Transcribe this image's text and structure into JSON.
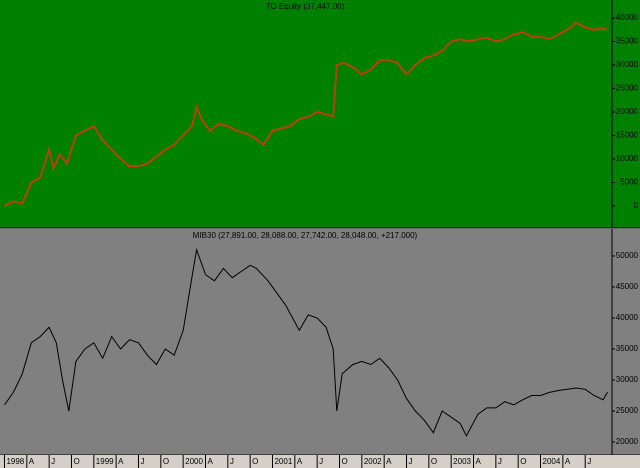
{
  "chart_data": [
    {
      "type": "line",
      "title": "TO Equity (37,447.00)",
      "background": "#008000",
      "label_color": "#000000",
      "series": [
        {
          "name": "TO Equity",
          "color": "#b8400c",
          "x": [
            1998.0,
            1998.1,
            1998.2,
            1998.3,
            1998.4,
            1998.5,
            1998.55,
            1998.62,
            1998.7,
            1998.8,
            1998.9,
            1999.0,
            1999.1,
            1999.2,
            1999.3,
            1999.4,
            1999.5,
            1999.6,
            1999.7,
            1999.8,
            1999.9,
            2000.0,
            2000.1,
            2000.15,
            2000.22,
            2000.3,
            2000.4,
            2000.5,
            2000.6,
            2000.7,
            2000.8,
            2000.9,
            2001.0,
            2001.1,
            2001.2,
            2001.3,
            2001.4,
            2001.5,
            2001.6,
            2001.68,
            2001.72,
            2001.8,
            2001.9,
            2002.0,
            2002.1,
            2002.2,
            2002.3,
            2002.4,
            2002.5,
            2002.6,
            2002.7,
            2002.8,
            2002.9,
            2003.0,
            2003.1,
            2003.2,
            2003.3,
            2003.4,
            2003.5,
            2003.6,
            2003.7,
            2003.8,
            2003.9,
            2004.0,
            2004.1,
            2004.2,
            2004.3,
            2004.4,
            2004.5,
            2004.6,
            2004.7,
            2004.75
          ],
          "values": [
            0,
            1000,
            500,
            5000,
            6000,
            12000,
            8000,
            11000,
            9000,
            15000,
            16000,
            17000,
            14000,
            12000,
            10000,
            8500,
            8500,
            9000,
            10500,
            12000,
            13000,
            15000,
            17000,
            21000,
            18000,
            16000,
            17500,
            17000,
            16000,
            15500,
            14500,
            13000,
            16000,
            16500,
            17000,
            18500,
            19000,
            20000,
            19500,
            19000,
            30000,
            30500,
            29500,
            28000,
            29000,
            31000,
            31000,
            30500,
            28000,
            30000,
            31500,
            32000,
            33000,
            35000,
            35500,
            35000,
            35500,
            35800,
            35000,
            35500,
            36500,
            37000,
            36000,
            36000,
            35500,
            36500,
            37500,
            39000,
            38000,
            37500,
            37800,
            37447
          ]
        }
      ],
      "ylim": [
        -4680,
        43830
      ],
      "yticks": [
        0,
        5000,
        10000,
        15000,
        20000,
        25000,
        30000,
        35000,
        40000
      ],
      "xlim": [
        1997.95,
        2004.8
      ]
    },
    {
      "type": "line",
      "title": "MIB30 (27,891.00, 28,088.00, 27,742.00, 28,048.00, +217.000)",
      "background": "#808080",
      "label_color": "#000000",
      "series": [
        {
          "name": "MIB30",
          "color": "#000000",
          "x": [
            1998.0,
            1998.1,
            1998.2,
            1998.3,
            1998.4,
            1998.5,
            1998.58,
            1998.65,
            1998.72,
            1998.8,
            1998.9,
            1999.0,
            1999.1,
            1999.2,
            1999.3,
            1999.4,
            1999.5,
            1999.6,
            1999.7,
            1999.8,
            1999.9,
            2000.0,
            2000.08,
            2000.15,
            2000.25,
            2000.35,
            2000.45,
            2000.55,
            2000.65,
            2000.75,
            2000.82,
            2000.95,
            2001.05,
            2001.15,
            2001.3,
            2001.4,
            2001.5,
            2001.6,
            2001.68,
            2001.72,
            2001.78,
            2001.9,
            2002.0,
            2002.1,
            2002.2,
            2002.3,
            2002.4,
            2002.5,
            2002.6,
            2002.7,
            2002.8,
            2002.9,
            2003.0,
            2003.1,
            2003.17,
            2003.3,
            2003.4,
            2003.5,
            2003.6,
            2003.7,
            2003.8,
            2003.9,
            2004.0,
            2004.1,
            2004.2,
            2004.3,
            2004.4,
            2004.5,
            2004.6,
            2004.7,
            2004.75
          ],
          "values": [
            26000,
            28000,
            31000,
            36000,
            37000,
            38500,
            36000,
            30000,
            25000,
            33000,
            35000,
            36000,
            33500,
            37000,
            35000,
            36500,
            36000,
            34000,
            32500,
            35000,
            34000,
            38000,
            45000,
            51000,
            47000,
            46000,
            48000,
            46500,
            47500,
            48500,
            48000,
            46000,
            44000,
            42000,
            38000,
            40500,
            40000,
            38500,
            35000,
            25000,
            31000,
            32500,
            33000,
            32500,
            33500,
            32000,
            30000,
            27000,
            25000,
            23500,
            21500,
            25000,
            24000,
            23000,
            21000,
            24500,
            25500,
            25500,
            26500,
            26000,
            26800,
            27500,
            27500,
            28000,
            28300,
            28500,
            28700,
            28500,
            27500,
            26800,
            28048
          ]
        }
      ],
      "ylim": [
        17900,
        54350
      ],
      "yticks": [
        20000,
        25000,
        30000,
        35000,
        40000,
        45000,
        50000
      ],
      "xlim": [
        1997.95,
        2004.8
      ],
      "xticks": [
        {
          "value": 1998.0,
          "label": "1998"
        },
        {
          "value": 1998.25,
          "label": "A"
        },
        {
          "value": 1998.5,
          "label": "J"
        },
        {
          "value": 1998.75,
          "label": "O"
        },
        {
          "value": 1999.0,
          "label": "1999"
        },
        {
          "value": 1999.25,
          "label": "A"
        },
        {
          "value": 1999.5,
          "label": "J"
        },
        {
          "value": 1999.75,
          "label": "O"
        },
        {
          "value": 2000.0,
          "label": "2000"
        },
        {
          "value": 2000.25,
          "label": "A"
        },
        {
          "value": 2000.5,
          "label": "J"
        },
        {
          "value": 2000.75,
          "label": "O"
        },
        {
          "value": 2001.0,
          "label": "2001"
        },
        {
          "value": 2001.25,
          "label": "A"
        },
        {
          "value": 2001.5,
          "label": "J"
        },
        {
          "value": 2001.75,
          "label": "O"
        },
        {
          "value": 2002.0,
          "label": "2002"
        },
        {
          "value": 2002.25,
          "label": "A"
        },
        {
          "value": 2002.5,
          "label": "J"
        },
        {
          "value": 2002.75,
          "label": "O"
        },
        {
          "value": 2003.0,
          "label": "2003"
        },
        {
          "value": 2003.25,
          "label": "A"
        },
        {
          "value": 2003.5,
          "label": "J"
        },
        {
          "value": 2003.75,
          "label": "O"
        },
        {
          "value": 2004.0,
          "label": "2004"
        },
        {
          "value": 2004.25,
          "label": "A"
        },
        {
          "value": 2004.5,
          "label": "J"
        }
      ]
    }
  ]
}
